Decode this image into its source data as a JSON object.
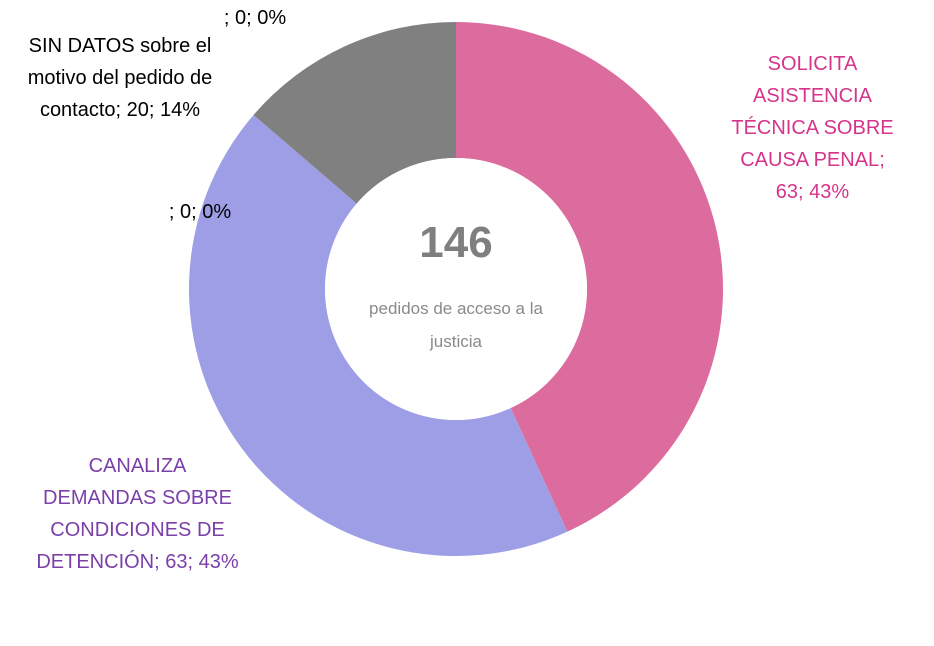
{
  "chart_data": {
    "type": "donut",
    "categories": [
      "SOLICITA ASISTENCIA TÉCNICA SOBRE CAUSA PENAL",
      "CANALIZA DEMANDAS SOBRE CONDICIONES DE DETENCIÓN",
      null,
      "SIN DATOS sobre el motivo del pedido de contacto",
      null
    ],
    "values": [
      63,
      63,
      0,
      20,
      0
    ],
    "value_labels": [
      "; 63; 43%",
      "; 63; 43%",
      "; 0; 0%",
      "; 20; 14%",
      "; 0; 0%"
    ],
    "colors": [
      "#dc6b9e",
      "#9d9ee6",
      "#9d9ee6",
      "#808080",
      "#808080"
    ],
    "label_colors": [
      "#d6348a",
      "#7a3fa8",
      "#000000",
      "#000000",
      "#000000"
    ],
    "center_value": 146,
    "center_text": "pedidos de acceso a la justicia"
  }
}
